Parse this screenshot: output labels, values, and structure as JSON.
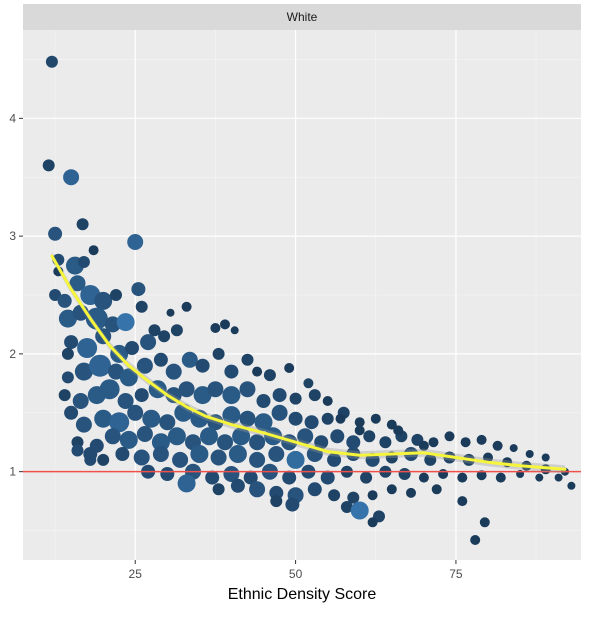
{
  "chart_data": {
    "type": "scatter",
    "title": "",
    "facet_label": "White",
    "xlabel": "Ethnic Density Score",
    "ylabel": "",
    "xlim": [
      7.5,
      94.5
    ],
    "ylim": [
      0.25,
      4.75
    ],
    "x_ticks": [
      25,
      50,
      75
    ],
    "y_ticks": [
      1,
      2,
      3,
      4
    ],
    "grid": true,
    "legend": "none",
    "reference_line": {
      "y": 1,
      "color": "#f0504a"
    },
    "smooth_line": {
      "color": "#f5f53c",
      "x": [
        12,
        15,
        18,
        21,
        24,
        27,
        30,
        33,
        36,
        40,
        45,
        50,
        55,
        60,
        65,
        70,
        75,
        80,
        85,
        92
      ],
      "y": [
        2.83,
        2.55,
        2.3,
        2.07,
        1.9,
        1.77,
        1.65,
        1.55,
        1.47,
        1.4,
        1.33,
        1.25,
        1.17,
        1.14,
        1.15,
        1.16,
        1.12,
        1.08,
        1.05,
        1.02
      ]
    },
    "palette": {
      "dark": "#132b43",
      "light": "#3a7bb5"
    },
    "series": [
      {
        "points": [
          [
            12,
            4.48,
            6,
            0.35
          ],
          [
            11.5,
            3.6,
            6,
            0.3
          ],
          [
            15,
            3.5,
            8,
            0.7
          ],
          [
            12.5,
            3.02,
            7,
            0.5
          ],
          [
            16.8,
            3.1,
            6,
            0.3
          ],
          [
            25,
            2.95,
            8,
            0.7
          ],
          [
            13,
            2.8,
            6,
            0.4
          ],
          [
            15.6,
            2.75,
            9,
            0.6
          ],
          [
            18.5,
            2.88,
            5,
            0.2
          ],
          [
            17,
            2.78,
            6,
            0.4
          ],
          [
            12.5,
            2.5,
            6,
            0.4
          ],
          [
            14,
            2.45,
            7,
            0.5
          ],
          [
            16,
            2.6,
            8,
            0.6
          ],
          [
            18,
            2.5,
            10,
            0.7
          ],
          [
            20,
            2.45,
            9,
            0.5
          ],
          [
            22,
            2.5,
            6,
            0.3
          ],
          [
            25.5,
            2.55,
            7,
            0.5
          ],
          [
            14.5,
            2.3,
            9,
            0.6
          ],
          [
            16.5,
            2.35,
            8,
            0.5
          ],
          [
            19,
            2.3,
            11,
            0.6
          ],
          [
            21.5,
            2.25,
            8,
            0.5
          ],
          [
            23.5,
            2.27,
            9,
            0.9
          ],
          [
            26,
            2.4,
            6,
            0.3
          ],
          [
            28,
            2.2,
            6,
            0.3
          ],
          [
            15,
            2.1,
            7,
            0.4
          ],
          [
            17.5,
            2.05,
            10,
            0.7
          ],
          [
            20,
            2.15,
            8,
            0.5
          ],
          [
            22.5,
            2.0,
            9,
            0.6
          ],
          [
            24.5,
            2.05,
            7,
            0.4
          ],
          [
            27,
            2.1,
            8,
            0.5
          ],
          [
            29.5,
            2.15,
            6,
            0.3
          ],
          [
            31.5,
            2.2,
            6,
            0.3
          ],
          [
            33,
            2.4,
            5,
            0.2
          ],
          [
            37.5,
            2.22,
            5,
            0.2
          ],
          [
            39,
            2.25,
            5,
            0.2
          ],
          [
            40.5,
            2.2,
            4,
            0.2
          ],
          [
            14.5,
            1.8,
            6,
            0.4
          ],
          [
            17,
            1.85,
            9,
            0.5
          ],
          [
            19.5,
            1.9,
            11,
            0.7
          ],
          [
            22,
            1.85,
            8,
            0.5
          ],
          [
            24,
            1.8,
            9,
            0.6
          ],
          [
            26.5,
            1.9,
            8,
            0.5
          ],
          [
            29,
            1.95,
            7,
            0.4
          ],
          [
            31,
            1.85,
            8,
            0.5
          ],
          [
            33.5,
            1.95,
            8,
            0.6
          ],
          [
            35.5,
            1.9,
            7,
            0.4
          ],
          [
            38,
            2.0,
            6,
            0.3
          ],
          [
            40,
            1.85,
            7,
            0.4
          ],
          [
            42.5,
            1.95,
            6,
            0.3
          ],
          [
            44,
            1.85,
            5,
            0.2
          ],
          [
            46,
            1.82,
            6,
            0.3
          ],
          [
            49,
            1.88,
            5,
            0.2
          ],
          [
            14,
            1.65,
            6,
            0.3
          ],
          [
            16.5,
            1.6,
            8,
            0.5
          ],
          [
            19,
            1.65,
            9,
            0.6
          ],
          [
            21,
            1.7,
            10,
            0.6
          ],
          [
            23.5,
            1.6,
            8,
            0.5
          ],
          [
            26,
            1.65,
            7,
            0.4
          ],
          [
            28.5,
            1.7,
            9,
            0.6
          ],
          [
            31,
            1.65,
            8,
            0.5
          ],
          [
            33,
            1.7,
            8,
            0.5
          ],
          [
            35.5,
            1.65,
            9,
            0.6
          ],
          [
            37.5,
            1.7,
            8,
            0.5
          ],
          [
            40,
            1.65,
            9,
            0.6
          ],
          [
            42.5,
            1.7,
            8,
            0.5
          ],
          [
            45,
            1.6,
            7,
            0.4
          ],
          [
            47.5,
            1.65,
            7,
            0.4
          ],
          [
            50,
            1.62,
            6,
            0.3
          ],
          [
            53,
            1.65,
            6,
            0.3
          ],
          [
            55,
            1.6,
            5,
            0.2
          ],
          [
            15,
            1.5,
            7,
            0.4
          ],
          [
            17,
            1.4,
            8,
            0.5
          ],
          [
            20,
            1.45,
            9,
            0.6
          ],
          [
            22.5,
            1.42,
            10,
            0.7
          ],
          [
            25,
            1.5,
            8,
            0.5
          ],
          [
            27.5,
            1.45,
            9,
            0.6
          ],
          [
            30,
            1.42,
            8,
            0.5
          ],
          [
            32.5,
            1.5,
            9,
            0.6
          ],
          [
            35,
            1.45,
            9,
            0.6
          ],
          [
            37.5,
            1.42,
            8,
            0.5
          ],
          [
            40,
            1.48,
            9,
            0.6
          ],
          [
            42.5,
            1.45,
            8,
            0.5
          ],
          [
            45,
            1.42,
            9,
            0.6
          ],
          [
            47.5,
            1.5,
            8,
            0.5
          ],
          [
            50,
            1.45,
            7,
            0.4
          ],
          [
            52.5,
            1.42,
            7,
            0.4
          ],
          [
            55,
            1.45,
            6,
            0.3
          ],
          [
            57.5,
            1.5,
            6,
            0.3
          ],
          [
            60,
            1.42,
            5,
            0.2
          ],
          [
            62.5,
            1.45,
            5,
            0.2
          ],
          [
            65,
            1.4,
            5,
            0.2
          ],
          [
            16,
            1.25,
            6,
            0.3
          ],
          [
            19,
            1.22,
            7,
            0.4
          ],
          [
            21.5,
            1.3,
            8,
            0.5
          ],
          [
            24,
            1.27,
            9,
            0.6
          ],
          [
            26.5,
            1.32,
            8,
            0.5
          ],
          [
            29,
            1.25,
            9,
            0.6
          ],
          [
            31.5,
            1.3,
            9,
            0.6
          ],
          [
            34,
            1.25,
            8,
            0.5
          ],
          [
            36.5,
            1.3,
            9,
            0.6
          ],
          [
            39,
            1.25,
            8,
            0.5
          ],
          [
            41.5,
            1.3,
            9,
            0.6
          ],
          [
            44,
            1.25,
            8,
            0.5
          ],
          [
            46.5,
            1.3,
            9,
            0.6
          ],
          [
            49,
            1.25,
            8,
            0.5
          ],
          [
            51.5,
            1.3,
            8,
            0.5
          ],
          [
            54,
            1.25,
            7,
            0.4
          ],
          [
            56.5,
            1.3,
            7,
            0.4
          ],
          [
            59,
            1.25,
            7,
            0.4
          ],
          [
            61.5,
            1.3,
            6,
            0.3
          ],
          [
            64,
            1.25,
            6,
            0.3
          ],
          [
            66.5,
            1.3,
            6,
            0.3
          ],
          [
            69,
            1.27,
            6,
            0.3
          ],
          [
            71.5,
            1.25,
            5,
            0.2
          ],
          [
            74,
            1.3,
            5,
            0.2
          ],
          [
            76.5,
            1.25,
            5,
            0.2
          ],
          [
            79,
            1.27,
            5,
            0.2
          ],
          [
            81.5,
            1.22,
            5,
            0.2
          ],
          [
            84,
            1.2,
            4,
            0.2
          ],
          [
            86.5,
            1.15,
            4,
            0.2
          ],
          [
            89,
            1.12,
            4,
            0.2
          ],
          [
            18,
            1.15,
            7,
            0.4
          ],
          [
            20,
            1.1,
            6,
            0.3
          ],
          [
            23,
            1.15,
            7,
            0.4
          ],
          [
            26,
            1.12,
            8,
            0.5
          ],
          [
            29,
            1.15,
            8,
            0.5
          ],
          [
            32,
            1.1,
            8,
            0.5
          ],
          [
            35,
            1.15,
            9,
            0.6
          ],
          [
            38,
            1.12,
            8,
            0.5
          ],
          [
            41,
            1.15,
            9,
            0.6
          ],
          [
            44,
            1.1,
            8,
            0.5
          ],
          [
            47,
            1.15,
            8,
            0.5
          ],
          [
            50,
            1.1,
            9,
            0.8
          ],
          [
            53,
            1.15,
            8,
            0.5
          ],
          [
            56,
            1.1,
            7,
            0.4
          ],
          [
            59,
            1.15,
            7,
            0.4
          ],
          [
            62,
            1.1,
            7,
            0.4
          ],
          [
            65,
            1.12,
            6,
            0.3
          ],
          [
            68,
            1.15,
            7,
            0.4
          ],
          [
            71,
            1.1,
            6,
            0.3
          ],
          [
            74,
            1.12,
            6,
            0.3
          ],
          [
            77,
            1.1,
            6,
            0.3
          ],
          [
            80,
            1.12,
            5,
            0.2
          ],
          [
            83,
            1.08,
            5,
            0.2
          ],
          [
            86,
            1.05,
            5,
            0.2
          ],
          [
            89,
            1.02,
            5,
            0.2
          ],
          [
            92,
            1.0,
            4,
            0.2
          ],
          [
            27,
            1.0,
            7,
            0.4
          ],
          [
            30,
            0.98,
            7,
            0.4
          ],
          [
            34,
            1.0,
            8,
            0.5
          ],
          [
            37,
            0.95,
            7,
            0.4
          ],
          [
            40,
            0.98,
            8,
            0.5
          ],
          [
            43,
            0.95,
            7,
            0.4
          ],
          [
            46,
            1.0,
            8,
            0.5
          ],
          [
            49,
            0.95,
            7,
            0.4
          ],
          [
            52,
            1.0,
            7,
            0.4
          ],
          [
            55,
            0.95,
            7,
            0.4
          ],
          [
            58,
            1.0,
            6,
            0.3
          ],
          [
            61,
            0.95,
            6,
            0.3
          ],
          [
            64,
            1.0,
            6,
            0.3
          ],
          [
            67,
            0.98,
            6,
            0.3
          ],
          [
            70,
            0.95,
            5,
            0.2
          ],
          [
            73,
            0.98,
            5,
            0.2
          ],
          [
            76,
            0.95,
            5,
            0.2
          ],
          [
            79,
            0.97,
            5,
            0.2
          ],
          [
            82,
            0.95,
            5,
            0.2
          ],
          [
            85,
            0.98,
            4,
            0.2
          ],
          [
            88,
            0.95,
            4,
            0.2
          ],
          [
            91,
            0.95,
            4,
            0.2
          ],
          [
            33,
            0.9,
            9,
            0.7
          ],
          [
            38,
            0.85,
            6,
            0.3
          ],
          [
            41,
            0.88,
            7,
            0.4
          ],
          [
            44,
            0.85,
            8,
            0.5
          ],
          [
            47,
            0.82,
            7,
            0.4
          ],
          [
            50,
            0.8,
            8,
            0.5
          ],
          [
            53,
            0.85,
            7,
            0.4
          ],
          [
            56,
            0.8,
            6,
            0.3
          ],
          [
            59,
            0.78,
            6,
            0.3
          ],
          [
            62,
            0.8,
            5,
            0.2
          ],
          [
            65,
            0.85,
            5,
            0.2
          ],
          [
            68,
            0.82,
            5,
            0.2
          ],
          [
            72,
            0.85,
            5,
            0.2
          ],
          [
            47,
            0.75,
            6,
            0.3
          ],
          [
            49.5,
            0.72,
            7,
            0.4
          ],
          [
            58,
            0.7,
            6,
            0.3
          ],
          [
            60,
            0.67,
            9,
            0.9
          ],
          [
            63,
            0.62,
            6,
            0.3
          ],
          [
            62,
            0.57,
            5,
            0.2
          ],
          [
            79.5,
            0.57,
            5,
            0.2
          ],
          [
            78,
            0.42,
            5,
            0.2
          ],
          [
            93,
            0.88,
            4,
            0.2
          ],
          [
            76,
            0.75,
            5,
            0.2
          ],
          [
            18,
            1.1,
            6,
            0.4
          ],
          [
            16,
            1.18,
            6,
            0.4
          ],
          [
            14.5,
            2.0,
            6,
            0.3
          ],
          [
            13,
            2.7,
            5,
            0.2
          ],
          [
            30.5,
            2.35,
            4,
            0.2
          ],
          [
            52,
            1.75,
            5,
            0.3
          ],
          [
            57,
            1.45,
            5,
            0.2
          ],
          [
            66,
            1.35,
            5,
            0.2
          ],
          [
            70,
            1.22,
            5,
            0.2
          ],
          [
            60,
            1.35,
            5,
            0.2
          ]
        ]
      }
    ]
  }
}
